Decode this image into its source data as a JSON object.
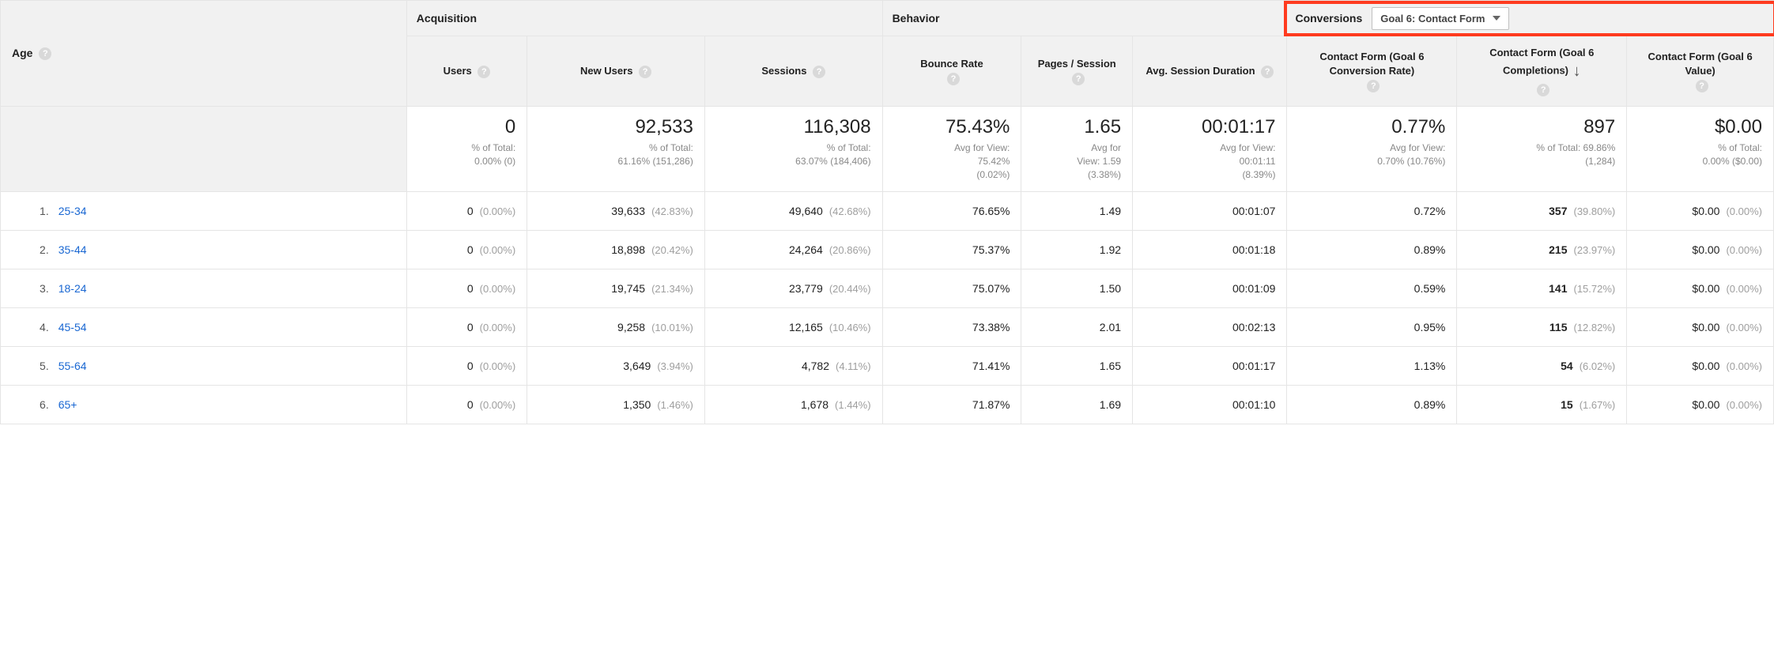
{
  "dimension": {
    "label": "Age"
  },
  "groups": {
    "acquisition": "Acquisition",
    "behavior": "Behavior",
    "conversions": "Conversions"
  },
  "goal_select": {
    "label": "Goal 6: Contact Form"
  },
  "columns": {
    "users": "Users",
    "new_users": "New Users",
    "sessions": "Sessions",
    "bounce_rate": "Bounce Rate",
    "pages_session": "Pages / Session",
    "avg_session": "Avg. Session Duration",
    "conv_rate": "Contact Form (Goal 6 Conversion Rate)",
    "completions": "Contact Form (Goal 6 Completions)",
    "value": "Contact Form (Goal 6 Value)"
  },
  "summary": {
    "users": {
      "big": "0",
      "sub1": "% of Total:",
      "sub2": "0.00% (0)"
    },
    "new_users": {
      "big": "92,533",
      "sub1": "% of Total:",
      "sub2": "61.16% (151,286)"
    },
    "sessions": {
      "big": "116,308",
      "sub1": "% of Total:",
      "sub2": "63.07% (184,406)"
    },
    "bounce_rate": {
      "big": "75.43%",
      "sub1": "Avg for View:",
      "sub2": "75.42%",
      "sub3": "(0.02%)"
    },
    "pages_session": {
      "big": "1.65",
      "sub1": "Avg for",
      "sub2": "View: 1.59",
      "sub3": "(3.38%)"
    },
    "avg_session": {
      "big": "00:01:17",
      "sub1": "Avg for View:",
      "sub2": "00:01:11",
      "sub3": "(8.39%)"
    },
    "conv_rate": {
      "big": "0.77%",
      "sub1": "Avg for View:",
      "sub2": "0.70% (10.76%)"
    },
    "completions": {
      "big": "897",
      "sub1": "% of Total: 69.86%",
      "sub2": "(1,284)"
    },
    "value": {
      "big": "$0.00",
      "sub1": "% of Total:",
      "sub2": "0.00% ($0.00)"
    }
  },
  "rows": [
    {
      "idx": "1.",
      "label": "25-34",
      "users": "0",
      "users_pct": "(0.00%)",
      "new_users": "39,633",
      "new_users_pct": "(42.83%)",
      "sessions": "49,640",
      "sessions_pct": "(42.68%)",
      "bounce_rate": "76.65%",
      "pages_session": "1.49",
      "avg_session": "00:01:07",
      "conv_rate": "0.72%",
      "completions": "357",
      "completions_pct": "(39.80%)",
      "value": "$0.00",
      "value_pct": "(0.00%)"
    },
    {
      "idx": "2.",
      "label": "35-44",
      "users": "0",
      "users_pct": "(0.00%)",
      "new_users": "18,898",
      "new_users_pct": "(20.42%)",
      "sessions": "24,264",
      "sessions_pct": "(20.86%)",
      "bounce_rate": "75.37%",
      "pages_session": "1.92",
      "avg_session": "00:01:18",
      "conv_rate": "0.89%",
      "completions": "215",
      "completions_pct": "(23.97%)",
      "value": "$0.00",
      "value_pct": "(0.00%)"
    },
    {
      "idx": "3.",
      "label": "18-24",
      "users": "0",
      "users_pct": "(0.00%)",
      "new_users": "19,745",
      "new_users_pct": "(21.34%)",
      "sessions": "23,779",
      "sessions_pct": "(20.44%)",
      "bounce_rate": "75.07%",
      "pages_session": "1.50",
      "avg_session": "00:01:09",
      "conv_rate": "0.59%",
      "completions": "141",
      "completions_pct": "(15.72%)",
      "value": "$0.00",
      "value_pct": "(0.00%)"
    },
    {
      "idx": "4.",
      "label": "45-54",
      "users": "0",
      "users_pct": "(0.00%)",
      "new_users": "9,258",
      "new_users_pct": "(10.01%)",
      "sessions": "12,165",
      "sessions_pct": "(10.46%)",
      "bounce_rate": "73.38%",
      "pages_session": "2.01",
      "avg_session": "00:02:13",
      "conv_rate": "0.95%",
      "completions": "115",
      "completions_pct": "(12.82%)",
      "value": "$0.00",
      "value_pct": "(0.00%)"
    },
    {
      "idx": "5.",
      "label": "55-64",
      "users": "0",
      "users_pct": "(0.00%)",
      "new_users": "3,649",
      "new_users_pct": "(3.94%)",
      "sessions": "4,782",
      "sessions_pct": "(4.11%)",
      "bounce_rate": "71.41%",
      "pages_session": "1.65",
      "avg_session": "00:01:17",
      "conv_rate": "1.13%",
      "completions": "54",
      "completions_pct": "(6.02%)",
      "value": "$0.00",
      "value_pct": "(0.00%)"
    },
    {
      "idx": "6.",
      "label": "65+",
      "users": "0",
      "users_pct": "(0.00%)",
      "new_users": "1,350",
      "new_users_pct": "(1.46%)",
      "sessions": "1,678",
      "sessions_pct": "(1.44%)",
      "bounce_rate": "71.87%",
      "pages_session": "1.69",
      "avg_session": "00:01:10",
      "conv_rate": "0.89%",
      "completions": "15",
      "completions_pct": "(1.67%)",
      "value": "$0.00",
      "value_pct": "(0.00%)"
    }
  ],
  "styles": {
    "link_color": "#1967d2",
    "muted_color": "#9e9e9e",
    "header_bg": "#f1f1f1",
    "border_color": "#e5e5e5",
    "highlight_border": "#ff3b1f"
  }
}
